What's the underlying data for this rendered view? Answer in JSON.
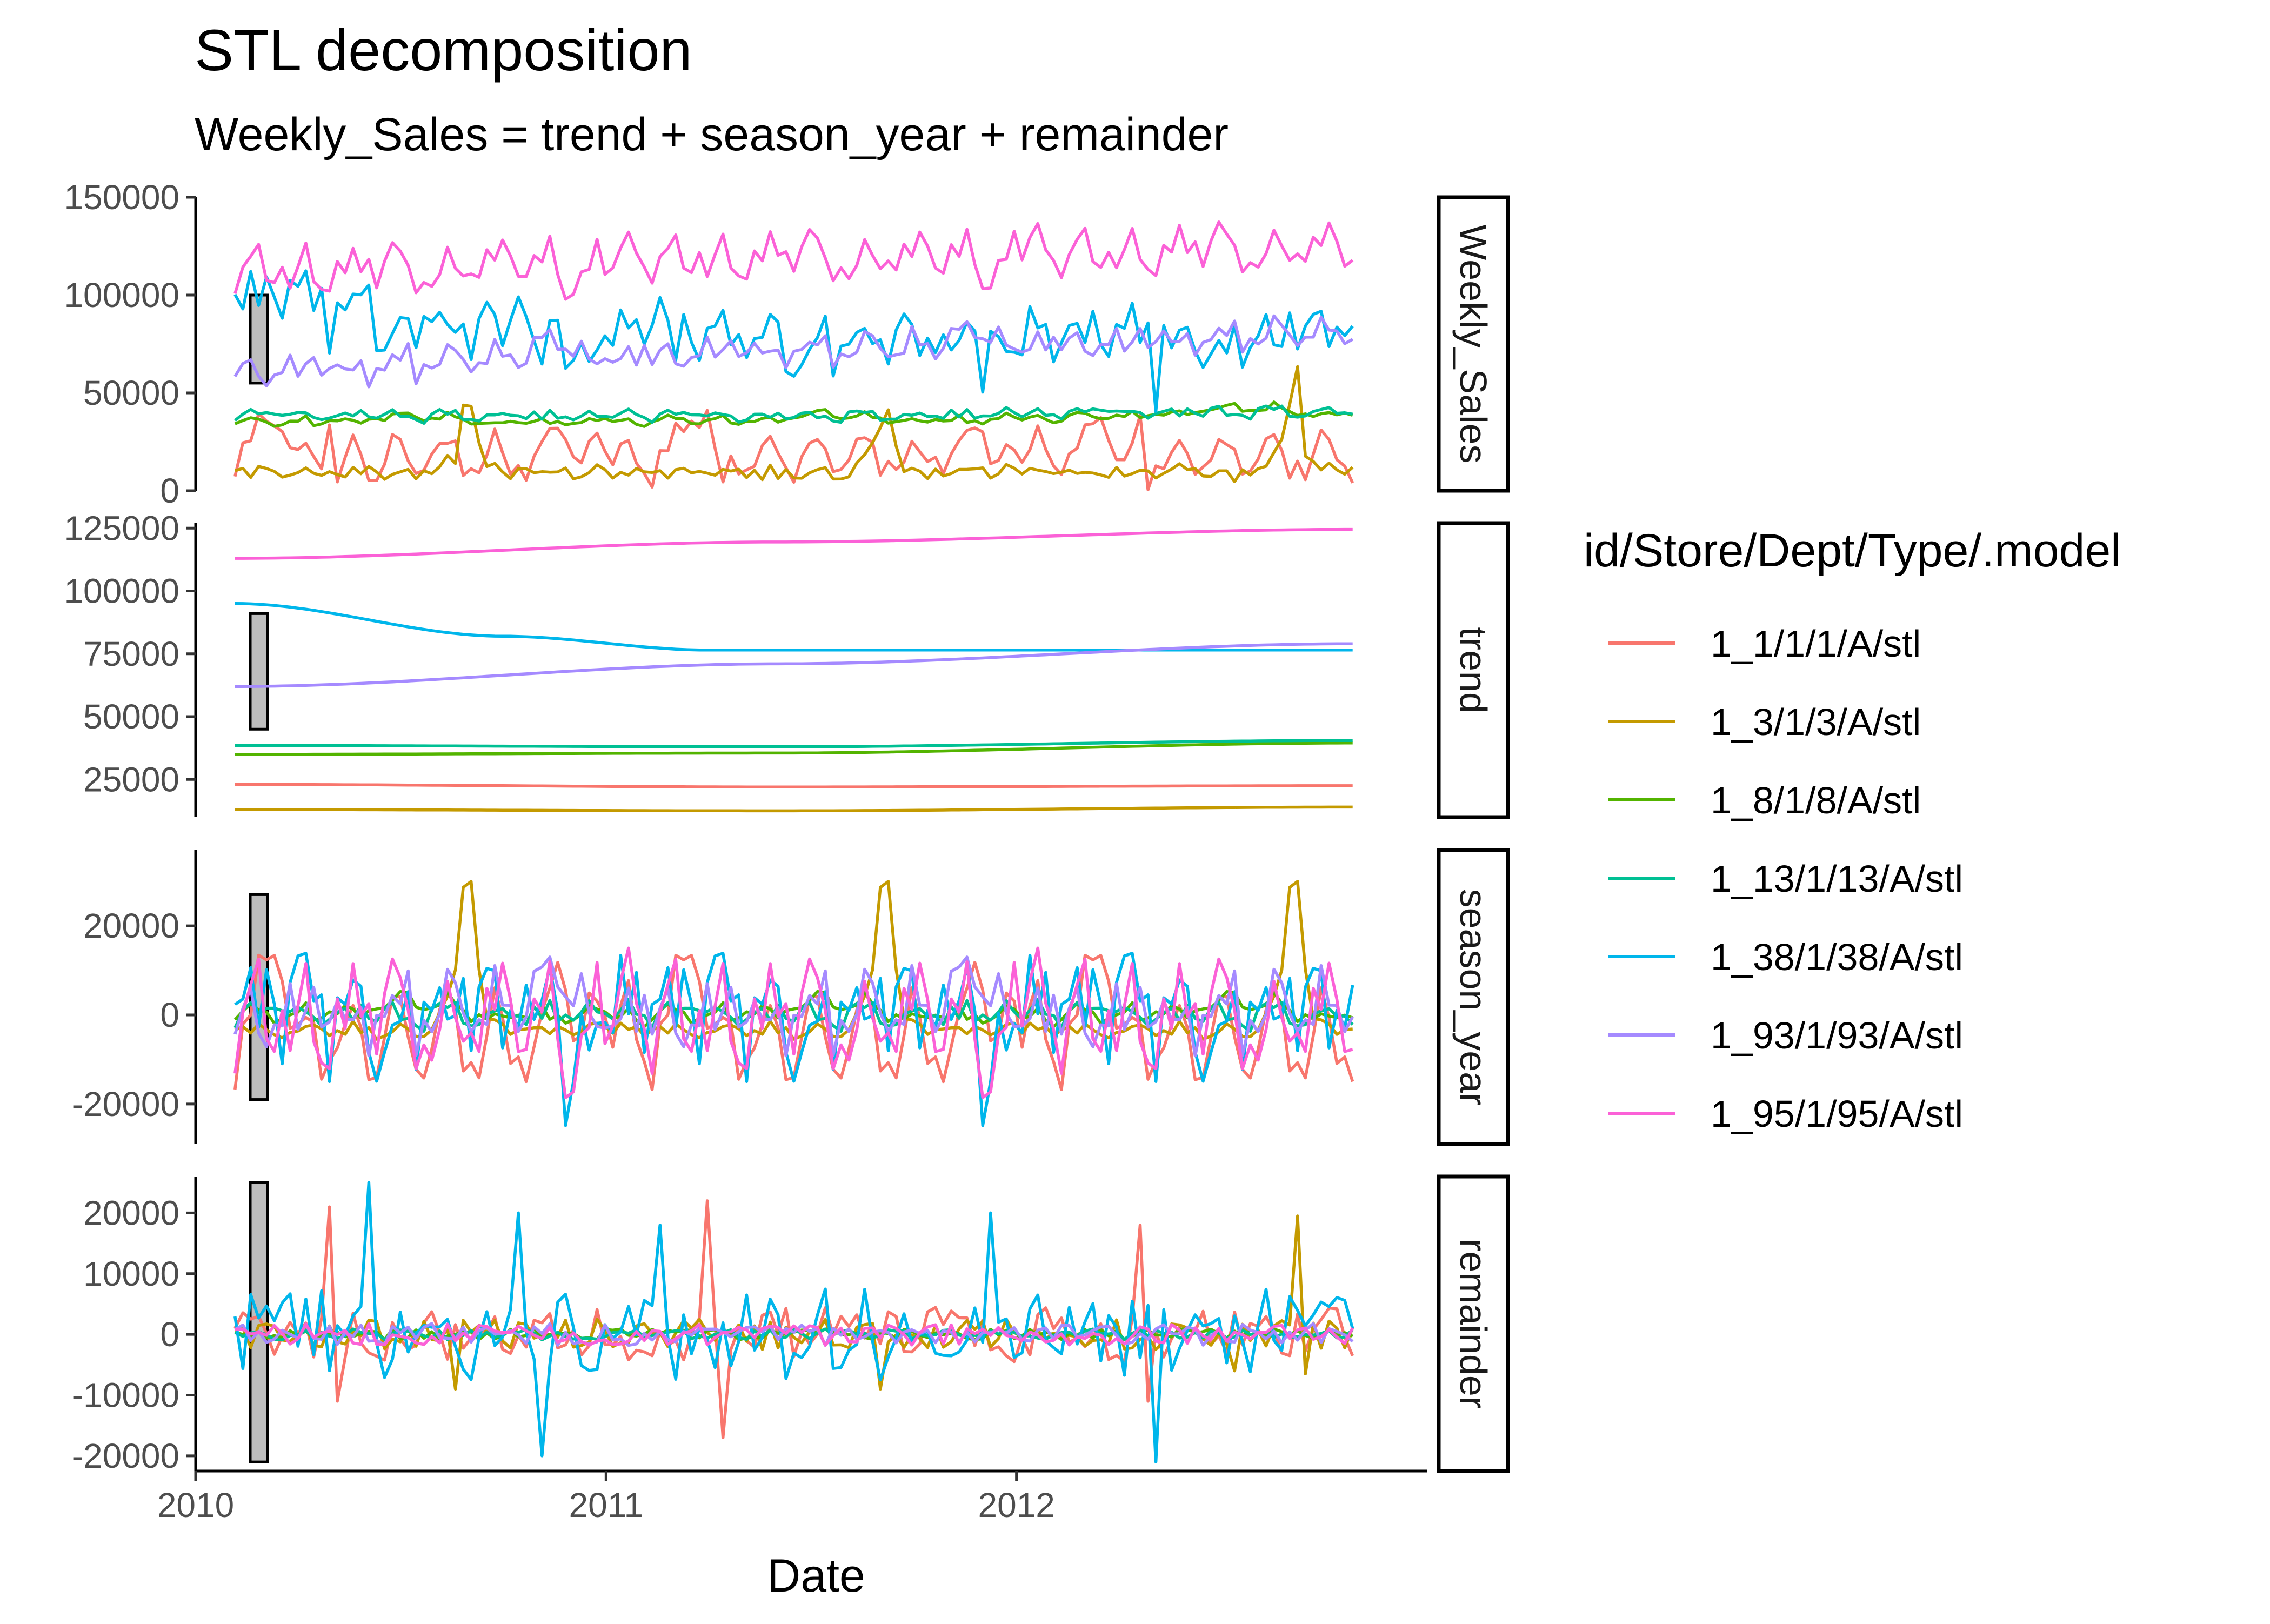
{
  "chart_data": {
    "type": "line",
    "title": "STL decomposition",
    "subtitle": "Weekly_Sales = trend + season_year + remainder",
    "xlabel": "Date",
    "x_range": [
      "2010-01-01",
      "2012-12-31"
    ],
    "x_ticks": [
      "2010",
      "2011",
      "2012"
    ],
    "x_start": "2010-02-05",
    "n_weeks": 143,
    "legend": {
      "title": "id/Store/Dept/Type/.model",
      "placement": "right"
    },
    "series": [
      {
        "name": "1_1/1/1/A/stl",
        "color": "#F8766D"
      },
      {
        "name": "1_3/1/3/A/stl",
        "color": "#C49A00"
      },
      {
        "name": "1_8/1/8/A/stl",
        "color": "#53B400"
      },
      {
        "name": "1_13/1/13/A/stl",
        "color": "#00C094"
      },
      {
        "name": "1_38/1/38/A/stl",
        "color": "#00B6EB"
      },
      {
        "name": "1_93/1/93/A/stl",
        "color": "#A58AFF"
      },
      {
        "name": "1_95/1/95/A/stl",
        "color": "#FB61D7"
      }
    ],
    "panels": [
      {
        "name": "Weekly_Sales",
        "ylim": [
          0,
          150000
        ],
        "yticks": [
          0,
          50000,
          100000,
          150000
        ],
        "ytick_labels": [
          "0",
          "50000",
          "100000",
          "150000"
        ],
        "scale_bar": [
          55000,
          100000
        ]
      },
      {
        "name": "trend",
        "ylim": [
          10000,
          127000
        ],
        "yticks": [
          25000,
          50000,
          75000,
          100000,
          125000
        ],
        "ytick_labels": [
          "25000",
          "50000",
          "75000",
          "100000",
          "125000"
        ],
        "scale_bar": [
          45000,
          91000
        ],
        "trend_levels": [
          {
            "series": "1_1/1/1/A/stl",
            "x": [
              "2010-02-05",
              "2011-06-01",
              "2012-10-26"
            ],
            "y": [
              23000,
              22000,
              22500
            ]
          },
          {
            "series": "1_3/1/3/A/stl",
            "x": [
              "2010-02-05",
              "2011-06-01",
              "2012-10-26"
            ],
            "y": [
              13000,
              12500,
              14000
            ]
          },
          {
            "series": "1_8/1/8/A/stl",
            "x": [
              "2010-02-05",
              "2011-06-01",
              "2012-10-26"
            ],
            "y": [
              35000,
              35500,
              39500
            ]
          },
          {
            "series": "1_13/1/13/A/stl",
            "x": [
              "2010-02-05",
              "2011-06-01",
              "2012-10-26"
            ],
            "y": [
              38500,
              38000,
              40500
            ]
          },
          {
            "series": "1_38/1/38/A/stl",
            "x": [
              "2010-02-05",
              "2010-10-01",
              "2011-04-01",
              "2012-10-26"
            ],
            "y": [
              95000,
              82000,
              76500,
              76500
            ]
          },
          {
            "series": "1_93/1/93/A/stl",
            "x": [
              "2010-02-05",
              "2011-06-01",
              "2012-10-26"
            ],
            "y": [
              62000,
              71000,
              79000
            ]
          },
          {
            "series": "1_95/1/95/A/stl",
            "x": [
              "2010-02-05",
              "2011-06-01",
              "2012-10-26"
            ],
            "y": [
              113000,
              119500,
              124500
            ]
          }
        ]
      },
      {
        "name": "season_year",
        "ylim": [
          -29000,
          37000
        ],
        "yticks": [
          -20000,
          0,
          20000
        ],
        "ytick_labels": [
          "-20000",
          "0",
          "20000"
        ],
        "scale_bar": [
          -19000,
          27000
        ]
      },
      {
        "name": "remainder",
        "ylim": [
          -22500,
          26000
        ],
        "yticks": [
          -20000,
          -10000,
          0,
          10000,
          20000
        ],
        "ytick_labels": [
          "-20000",
          "-10000",
          "0",
          "10000",
          "20000"
        ],
        "scale_bar": [
          -21000,
          25000
        ]
      }
    ]
  }
}
